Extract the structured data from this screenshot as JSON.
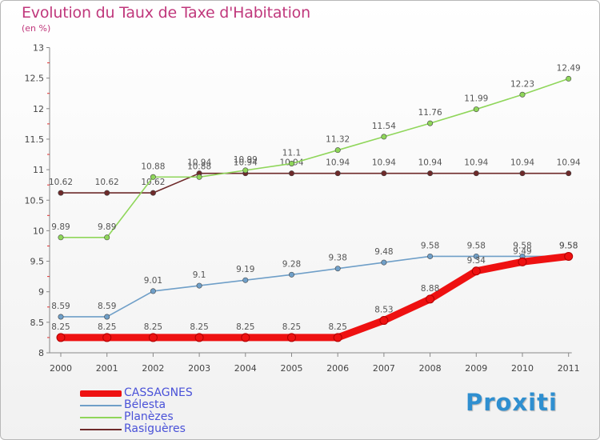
{
  "header": {
    "title": "Evolution du Taux de Taxe d'Habitation",
    "subtitle": "(en %)"
  },
  "logo_text": "Proxiti",
  "chart_data": {
    "type": "line",
    "x": [
      "2000",
      "2001",
      "2002",
      "2003",
      "2004",
      "2005",
      "2006",
      "2007",
      "2008",
      "2009",
      "2010",
      "2011"
    ],
    "ylim": [
      8,
      13
    ],
    "yticks": [
      "8",
      "8.5",
      "9",
      "9.5",
      "10",
      "10.5",
      "11",
      "11.5",
      "12",
      "12.5",
      "13"
    ],
    "grid": false,
    "legend_position": "bottom-left",
    "series": [
      {
        "name": "Rasiguères",
        "color": "#6e2a2a",
        "values": [
          10.62,
          10.62,
          10.62,
          10.94,
          10.94,
          10.94,
          10.94,
          10.94,
          10.94,
          10.94,
          10.94,
          10.94
        ]
      },
      {
        "name": "Planèzes",
        "color": "#8fd65a",
        "values": [
          9.89,
          9.89,
          10.88,
          10.88,
          10.99,
          11.1,
          11.32,
          11.54,
          11.76,
          11.99,
          12.23,
          12.49
        ]
      },
      {
        "name": "Bélesta",
        "color": "#6f9fc8",
        "values": [
          8.59,
          8.59,
          9.01,
          9.1,
          9.19,
          9.28,
          9.38,
          9.48,
          9.58,
          9.58,
          9.58,
          9.58
        ]
      },
      {
        "name": "CASSAGNES",
        "color": "#ee1111",
        "values": [
          8.25,
          8.25,
          8.25,
          8.25,
          8.25,
          8.25,
          8.25,
          8.53,
          8.88,
          9.34,
          9.49,
          9.58
        ]
      }
    ],
    "legend_order": [
      "CASSAGNES",
      "Bélesta",
      "Planèzes",
      "Rasiguères"
    ]
  }
}
